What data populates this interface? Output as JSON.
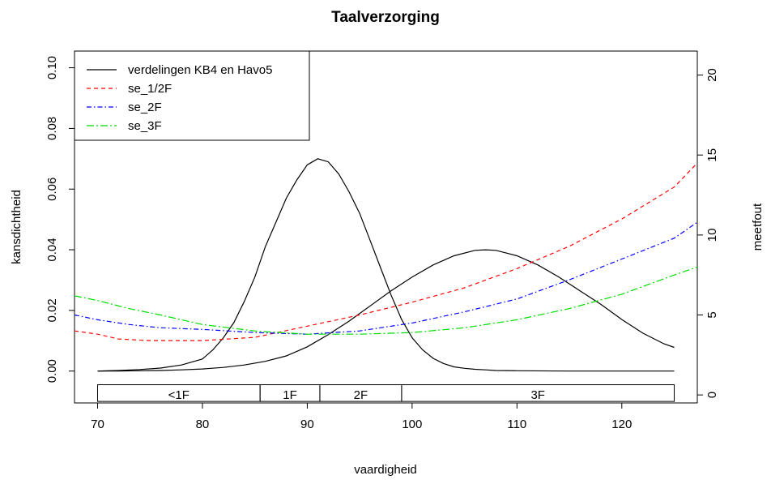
{
  "chart_data": {
    "type": "line",
    "title": "Taalverzorging",
    "xlabel": "vaardigheid",
    "ylabel": "kansdichtheid",
    "y2label": "meetfout",
    "xlim": [
      67.8,
      127.2
    ],
    "ylim": [
      -0.0105,
      0.1055
    ],
    "y2lim": [
      -0.5,
      21.5
    ],
    "x_ticks": [
      70,
      80,
      90,
      100,
      110,
      120
    ],
    "y_ticks": [
      0.0,
      0.02,
      0.04,
      0.06,
      0.08,
      0.1
    ],
    "y_tick_labels": [
      "0.00",
      "0.02",
      "0.04",
      "0.06",
      "0.08",
      "0.10"
    ],
    "y2_ticks": [
      0,
      5,
      10,
      15,
      20
    ],
    "grid": false,
    "legend_position": "top-left",
    "legend": [
      {
        "label": "verdelingen KB4 en Havo5",
        "color": "#000000",
        "dash": "none"
      },
      {
        "label": "se_1/2F",
        "color": "#ff0000",
        "dash": "5,4"
      },
      {
        "label": "se_2F",
        "color": "#0000ff",
        "dash": "6,3,1.5,3"
      },
      {
        "label": "se_3F",
        "color": "#00dd00",
        "dash": "9,3,2,3"
      }
    ],
    "density_series": [
      {
        "name": "KB4",
        "axis": "left",
        "color": "#000000",
        "x": [
          70,
          72,
          74,
          76,
          78,
          80,
          81,
          82,
          83,
          84,
          85,
          86,
          87,
          88,
          89,
          90,
          91,
          92,
          93,
          94,
          95,
          96,
          97,
          98,
          99,
          100,
          101,
          102,
          103,
          104,
          105,
          106,
          107,
          108,
          110,
          115,
          120,
          125
        ],
        "y": [
          0.0,
          0.0002,
          0.0005,
          0.001,
          0.002,
          0.004,
          0.007,
          0.011,
          0.016,
          0.023,
          0.031,
          0.041,
          0.049,
          0.057,
          0.063,
          0.068,
          0.07,
          0.069,
          0.065,
          0.059,
          0.052,
          0.043,
          0.034,
          0.025,
          0.017,
          0.011,
          0.007,
          0.0042,
          0.0025,
          0.0014,
          0.0009,
          0.0006,
          0.0004,
          0.0002,
          0.0001,
          0.0,
          0.0,
          0.0
        ]
      },
      {
        "name": "Havo5",
        "axis": "left",
        "color": "#000000",
        "x": [
          70,
          72,
          74,
          76,
          78,
          80,
          82,
          84,
          86,
          88,
          90,
          92,
          94,
          96,
          98,
          100,
          102,
          104,
          106,
          107,
          108,
          110,
          112,
          114,
          116,
          118,
          120,
          122,
          124,
          125
        ],
        "y": [
          0.0,
          0.0,
          0.0001,
          0.0002,
          0.0004,
          0.0007,
          0.0012,
          0.002,
          0.0032,
          0.005,
          0.008,
          0.012,
          0.0165,
          0.0215,
          0.0265,
          0.031,
          0.035,
          0.038,
          0.0398,
          0.04,
          0.0398,
          0.038,
          0.035,
          0.031,
          0.0265,
          0.022,
          0.017,
          0.0125,
          0.009,
          0.0078
        ]
      }
    ],
    "error_series": [
      {
        "name": "se_1/2F",
        "axis": "right",
        "color": "#ff0000",
        "x": [
          67.8,
          70,
          72,
          75,
          80,
          85,
          90,
          95,
          100,
          105,
          110,
          115,
          120,
          125,
          127.2
        ],
        "y": [
          4.0,
          3.8,
          3.5,
          3.4,
          3.4,
          3.6,
          4.3,
          5.0,
          5.8,
          6.7,
          7.9,
          9.3,
          11.0,
          13.0,
          14.5
        ]
      },
      {
        "name": "se_2F",
        "axis": "right",
        "color": "#0000ff",
        "x": [
          67.8,
          70,
          73,
          76,
          80,
          85,
          90,
          95,
          100,
          105,
          110,
          115,
          120,
          125,
          127.2
        ],
        "y": [
          5.0,
          4.7,
          4.4,
          4.2,
          4.1,
          3.9,
          3.8,
          4.0,
          4.5,
          5.2,
          6.0,
          7.2,
          8.5,
          9.8,
          10.8
        ]
      },
      {
        "name": "se_3F",
        "axis": "right",
        "color": "#00dd00",
        "x": [
          67.8,
          70,
          73,
          76,
          80,
          85,
          90,
          95,
          100,
          105,
          110,
          115,
          120,
          125,
          127.2
        ],
        "y": [
          6.2,
          5.9,
          5.4,
          5.0,
          4.4,
          4.0,
          3.8,
          3.8,
          3.9,
          4.2,
          4.7,
          5.4,
          6.3,
          7.5,
          8.0
        ]
      }
    ],
    "bands": [
      {
        "label": "<1F",
        "from": 70,
        "to": 85.5
      },
      {
        "label": "1F",
        "from": 85.5,
        "to": 91.2
      },
      {
        "label": "2F",
        "from": 91.2,
        "to": 99
      },
      {
        "label": "3F",
        "from": 99,
        "to": 125
      }
    ]
  }
}
